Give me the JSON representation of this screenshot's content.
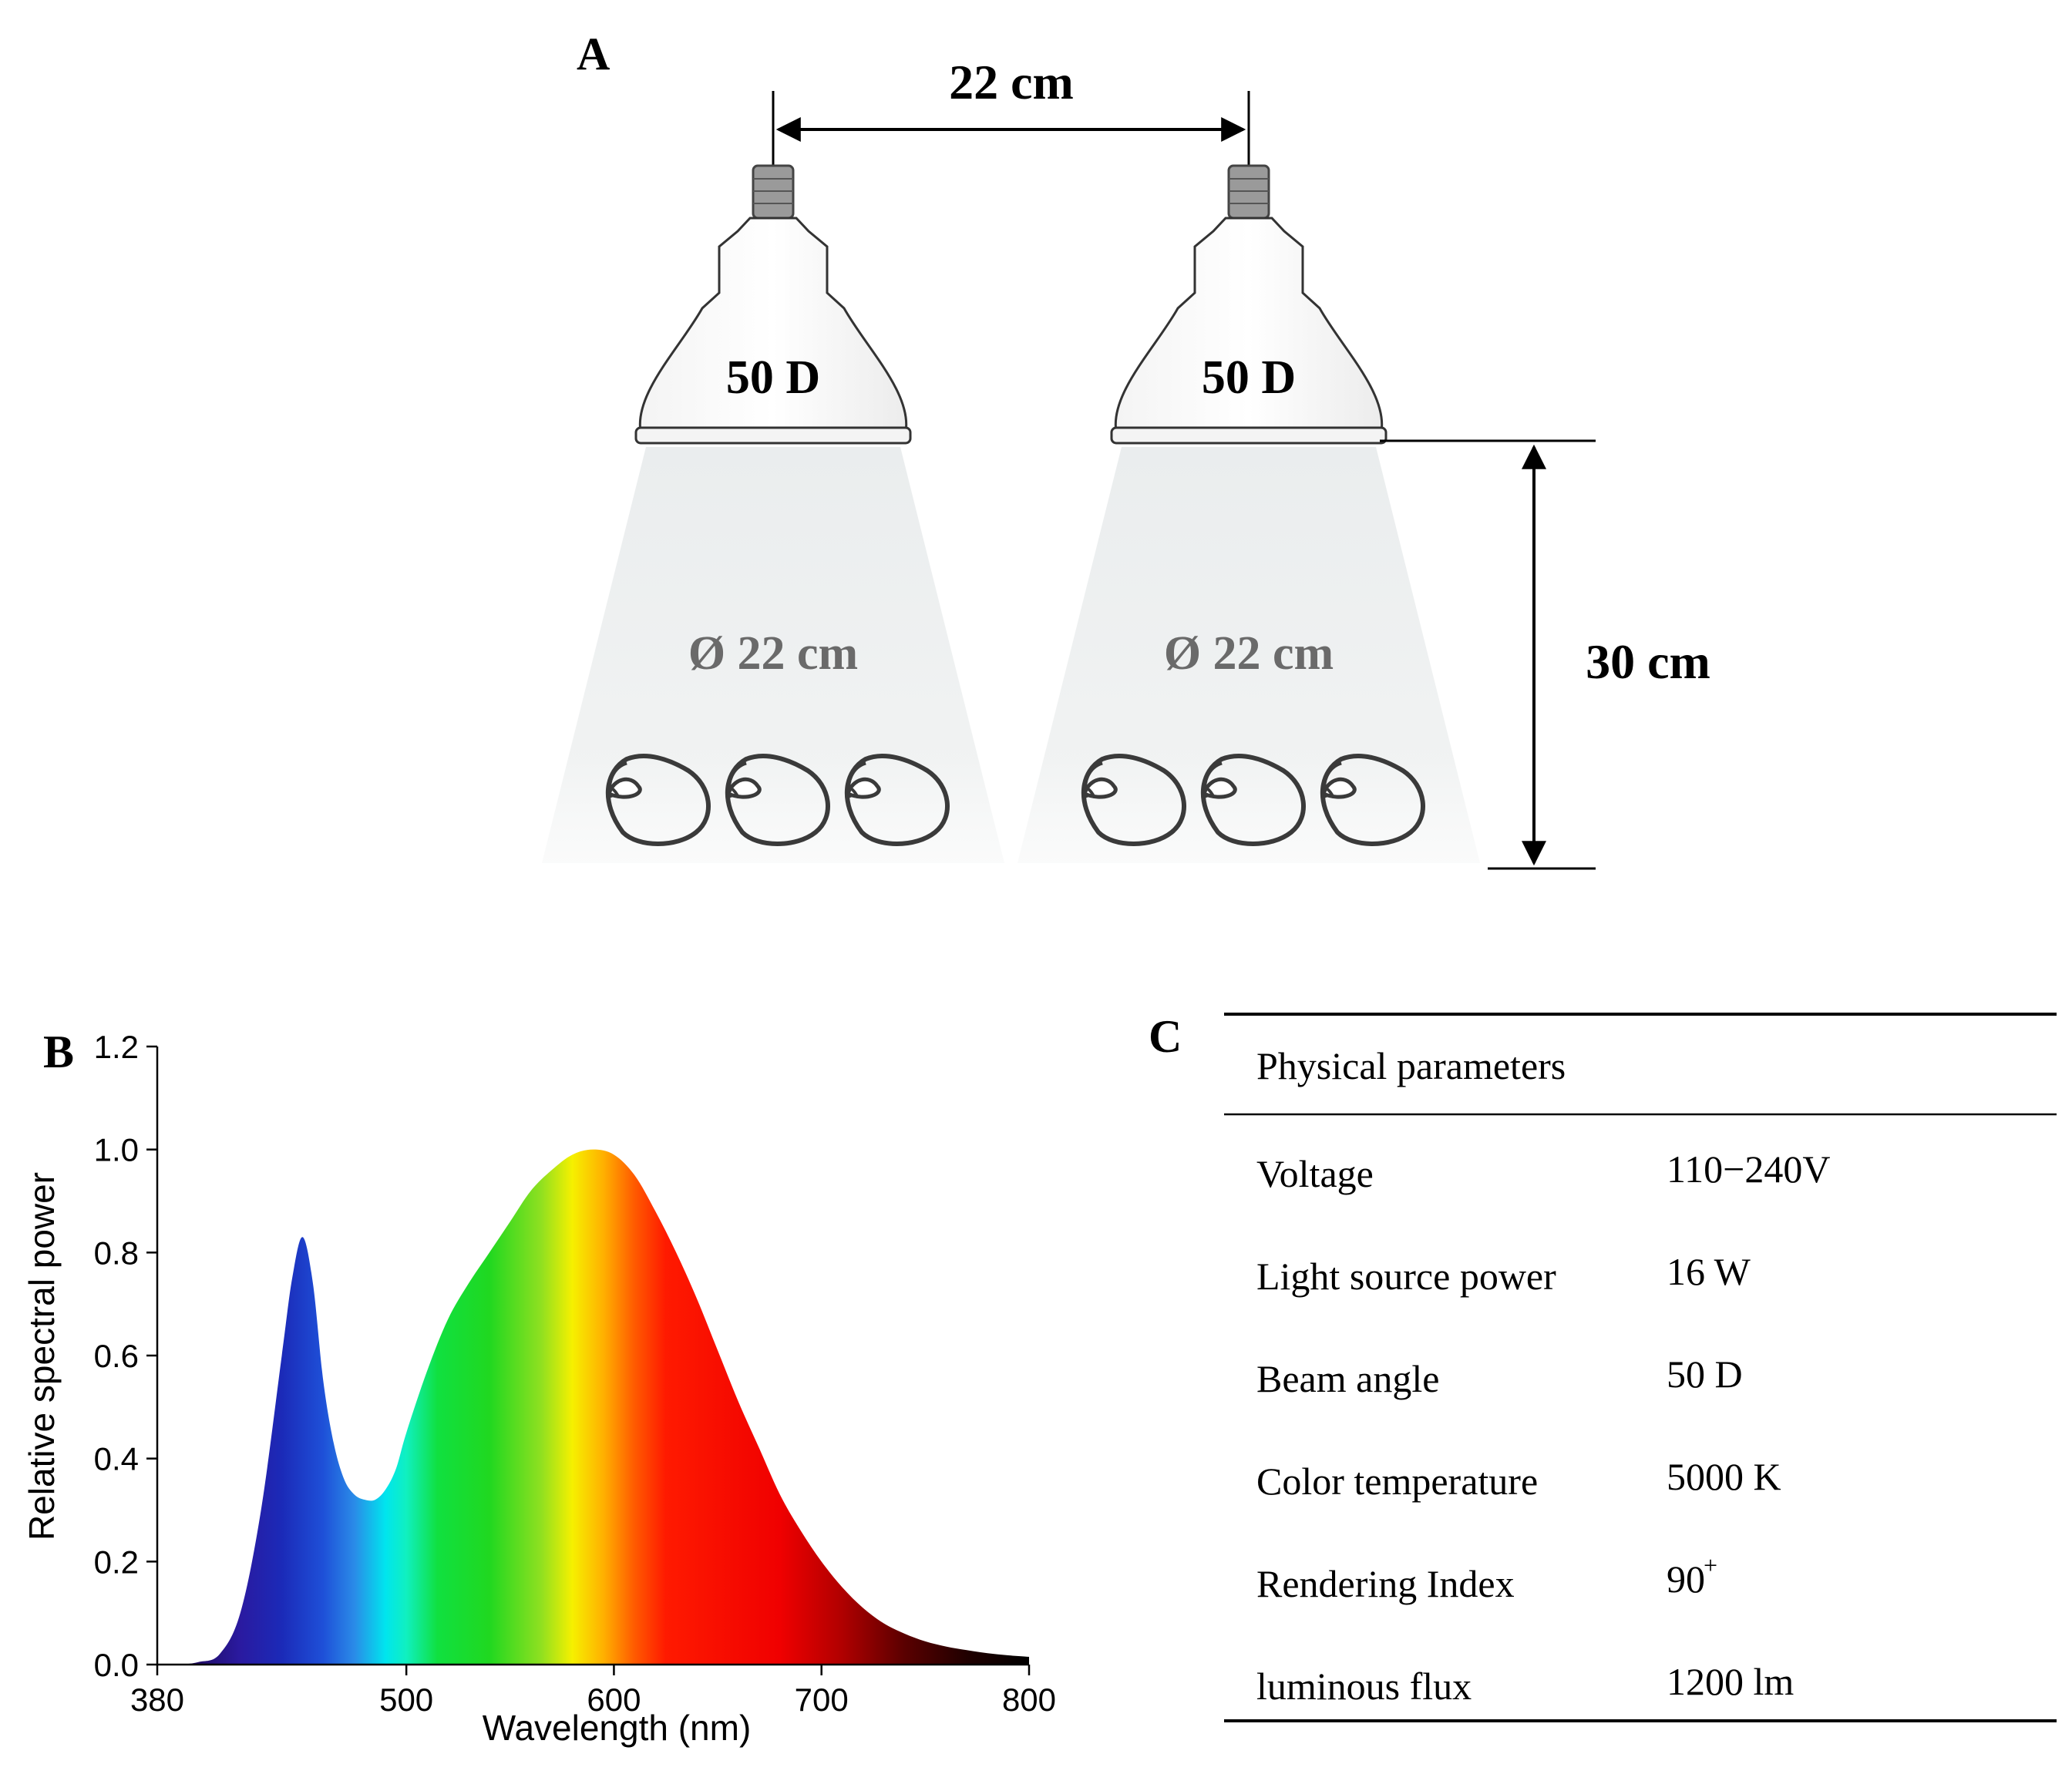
{
  "panel_a": {
    "label": "A",
    "spacing_label": "22 cm",
    "height_label": "30 cm",
    "lamps": [
      {
        "label": "50 D",
        "beam_label": "Ø 22 cm",
        "plants": 3
      },
      {
        "label": "50 D",
        "beam_label": "Ø 22 cm",
        "plants": 3
      }
    ]
  },
  "panel_b": {
    "label": "B"
  },
  "chart_data": {
    "type": "area",
    "title": "",
    "xlabel": "Wavelength (nm)",
    "ylabel": "Relative spectral power",
    "xlim": [
      380,
      800
    ],
    "ylim": [
      0,
      1.2
    ],
    "x_ticks": [
      380,
      500,
      600,
      700,
      800
    ],
    "y_ticks": [
      "0.0",
      "0.2",
      "0.4",
      "0.6",
      "0.8",
      "1.0",
      "1.2"
    ],
    "fill": "visible spectrum colours by wavelength",
    "x": [
      380,
      390,
      400,
      410,
      420,
      430,
      440,
      445,
      450,
      455,
      460,
      465,
      470,
      475,
      480,
      485,
      490,
      495,
      500,
      510,
      520,
      530,
      540,
      550,
      560,
      570,
      580,
      590,
      600,
      610,
      620,
      630,
      640,
      650,
      660,
      670,
      680,
      690,
      700,
      710,
      720,
      730,
      740,
      750,
      760,
      770,
      780,
      790,
      800
    ],
    "y": [
      0.0,
      0.0,
      0.005,
      0.02,
      0.1,
      0.3,
      0.6,
      0.75,
      0.83,
      0.74,
      0.55,
      0.43,
      0.36,
      0.33,
      0.32,
      0.32,
      0.34,
      0.38,
      0.45,
      0.57,
      0.67,
      0.74,
      0.8,
      0.86,
      0.92,
      0.96,
      0.99,
      1.0,
      0.99,
      0.95,
      0.88,
      0.8,
      0.71,
      0.61,
      0.51,
      0.42,
      0.33,
      0.26,
      0.2,
      0.15,
      0.11,
      0.08,
      0.06,
      0.045,
      0.035,
      0.028,
      0.022,
      0.018,
      0.015
    ]
  },
  "panel_c": {
    "label": "C",
    "header": "Physical parameters",
    "rows": [
      {
        "name": "Voltage",
        "value": "110−240V"
      },
      {
        "name": "Light source power",
        "value": "16 W"
      },
      {
        "name": "Beam angle",
        "value": "50 D"
      },
      {
        "name": "Color temperature",
        "value": "5000 K"
      },
      {
        "name": "Rendering Index",
        "value": "90",
        "sup": "+"
      },
      {
        "name": "luminous flux",
        "value": "1200 lm"
      }
    ]
  }
}
